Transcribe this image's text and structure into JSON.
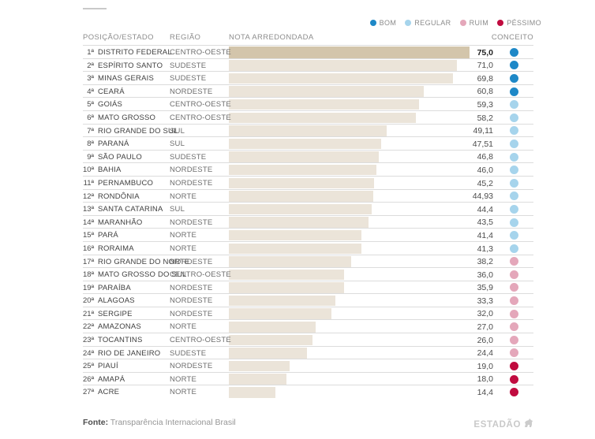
{
  "legend": {
    "items": [
      {
        "label": "BOM",
        "key": "bom",
        "color": "#1e88c7"
      },
      {
        "label": "REGULAR",
        "key": "regular",
        "color": "#a6d4ec"
      },
      {
        "label": "RUIM",
        "key": "ruim",
        "color": "#e4a7ba"
      },
      {
        "label": "PÉSSIMO",
        "key": "pessimo",
        "color": "#c00b3f"
      }
    ]
  },
  "colors": {
    "bar": "#ebe4d9",
    "bar_first": "#d3c5ab",
    "bom": "#1e88c7",
    "regular": "#a6d4ec",
    "ruim": "#e4a7ba",
    "pessimo": "#c00b3f"
  },
  "columns": {
    "position": "POSIÇÃO/ESTADO",
    "region": "REGIÃO",
    "score": "NOTA ARREDONDADA",
    "concept": "CONCEITO"
  },
  "table": {
    "rows": [
      {
        "rank": "1ª",
        "state": "DISTRITO FEDERAL",
        "region": "CENTRO-OESTE",
        "score": "75,0",
        "score_value": 75.0,
        "concept": "bom",
        "bold": true
      },
      {
        "rank": "2ª",
        "state": "ESPÍRITO SANTO",
        "region": "SUDESTE",
        "score": "71,0",
        "score_value": 71.0,
        "concept": "bom",
        "bold": false
      },
      {
        "rank": "3ª",
        "state": "MINAS GERAIS",
        "region": "SUDESTE",
        "score": "69,8",
        "score_value": 69.8,
        "concept": "bom",
        "bold": false
      },
      {
        "rank": "4ª",
        "state": "CEARÁ",
        "region": "NORDESTE",
        "score": "60,8",
        "score_value": 60.8,
        "concept": "bom",
        "bold": false
      },
      {
        "rank": "5ª",
        "state": "GOIÁS",
        "region": "CENTRO-OESTE",
        "score": "59,3",
        "score_value": 59.3,
        "concept": "regular",
        "bold": false
      },
      {
        "rank": "6ª",
        "state": "MATO GROSSO",
        "region": "CENTRO-OESTE",
        "score": "58,2",
        "score_value": 58.2,
        "concept": "regular",
        "bold": false
      },
      {
        "rank": "7ª",
        "state": "RIO GRANDE DO SUL",
        "region": "SUL",
        "score": "49,11",
        "score_value": 49.11,
        "concept": "regular",
        "bold": false
      },
      {
        "rank": "8ª",
        "state": "PARANÁ",
        "region": "SUL",
        "score": "47,51",
        "score_value": 47.51,
        "concept": "regular",
        "bold": false
      },
      {
        "rank": "9ª",
        "state": "SÃO PAULO",
        "region": "SUDESTE",
        "score": "46,8",
        "score_value": 46.8,
        "concept": "regular",
        "bold": false
      },
      {
        "rank": "10ª",
        "state": "BAHIA",
        "region": "NORDESTE",
        "score": "46,0",
        "score_value": 46.0,
        "concept": "regular",
        "bold": false
      },
      {
        "rank": "11ª",
        "state": "PERNAMBUCO",
        "region": "NORDESTE",
        "score": "45,2",
        "score_value": 45.2,
        "concept": "regular",
        "bold": false
      },
      {
        "rank": "12ª",
        "state": "RONDÔNIA",
        "region": "NORTE",
        "score": "44,93",
        "score_value": 44.93,
        "concept": "regular",
        "bold": false
      },
      {
        "rank": "13ª",
        "state": "SANTA CATARINA",
        "region": "SUL",
        "score": "44,4",
        "score_value": 44.4,
        "concept": "regular",
        "bold": false
      },
      {
        "rank": "14ª",
        "state": "MARANHÃO",
        "region": "NORDESTE",
        "score": "43,5",
        "score_value": 43.5,
        "concept": "regular",
        "bold": false
      },
      {
        "rank": "15ª",
        "state": "PARÁ",
        "region": "NORTE",
        "score": "41,4",
        "score_value": 41.4,
        "concept": "regular",
        "bold": false
      },
      {
        "rank": "16ª",
        "state": "RORAIMA",
        "region": "NORTE",
        "score": "41,3",
        "score_value": 41.3,
        "concept": "regular",
        "bold": false
      },
      {
        "rank": "17ª",
        "state": "RIO GRANDE DO NORTE",
        "region": "NORDESTE",
        "score": "38,2",
        "score_value": 38.2,
        "concept": "ruim",
        "bold": false
      },
      {
        "rank": "18ª",
        "state": "MATO GROSSO DO SUL",
        "region": "CENTRO-OESTE",
        "score": "36,0",
        "score_value": 36.0,
        "concept": "ruim",
        "bold": false
      },
      {
        "rank": "19ª",
        "state": "PARAÍBA",
        "region": "NORDESTE",
        "score": "35,9",
        "score_value": 35.9,
        "concept": "ruim",
        "bold": false
      },
      {
        "rank": "20ª",
        "state": "ALAGOAS",
        "region": "NORDESTE",
        "score": "33,3",
        "score_value": 33.3,
        "concept": "ruim",
        "bold": false
      },
      {
        "rank": "21ª",
        "state": "SERGIPE",
        "region": "NORDESTE",
        "score": "32,0",
        "score_value": 32.0,
        "concept": "ruim",
        "bold": false
      },
      {
        "rank": "22ª",
        "state": "AMAZONAS",
        "region": "NORTE",
        "score": "27,0",
        "score_value": 27.0,
        "concept": "ruim",
        "bold": false
      },
      {
        "rank": "23ª",
        "state": "TOCANTINS",
        "region": "CENTRO-OESTE",
        "score": "26,0",
        "score_value": 26.0,
        "concept": "ruim",
        "bold": false
      },
      {
        "rank": "24ª",
        "state": "RIO DE JANEIRO",
        "region": "SUDESTE",
        "score": "24,4",
        "score_value": 24.4,
        "concept": "ruim",
        "bold": false
      },
      {
        "rank": "25ª",
        "state": "PIAUÍ",
        "region": "NORDESTE",
        "score": "19,0",
        "score_value": 19.0,
        "concept": "pessimo",
        "bold": false
      },
      {
        "rank": "26ª",
        "state": "AMAPÁ",
        "region": "NORTE",
        "score": "18,0",
        "score_value": 18.0,
        "concept": "pessimo",
        "bold": false
      },
      {
        "rank": "27ª",
        "state": "ACRE",
        "region": "NORTE",
        "score": "14,4",
        "score_value": 14.4,
        "concept": "pessimo",
        "bold": false
      }
    ]
  },
  "footer": {
    "source_label": "Fonte:",
    "source_text": " Transparência Internacional Brasil",
    "brand": "ESTADÃO"
  },
  "chart_data": {
    "type": "bar",
    "orientation": "horizontal",
    "title": "",
    "categories": [
      "DISTRITO FEDERAL",
      "ESPÍRITO SANTO",
      "MINAS GERAIS",
      "CEARÁ",
      "GOIÁS",
      "MATO GROSSO",
      "RIO GRANDE DO SUL",
      "PARANÁ",
      "SÃO PAULO",
      "BAHIA",
      "PERNAMBUCO",
      "RONDÔNIA",
      "SANTA CATARINA",
      "MARANHÃO",
      "PARÁ",
      "RORAIMA",
      "RIO GRANDE DO NORTE",
      "MATO GROSSO DO SUL",
      "PARAÍBA",
      "ALAGOAS",
      "SERGIPE",
      "AMAZONAS",
      "TOCANTINS",
      "RIO DE JANEIRO",
      "PIAUÍ",
      "AMAPÁ",
      "ACRE"
    ],
    "values": [
      75.0,
      71.0,
      69.8,
      60.8,
      59.3,
      58.2,
      49.11,
      47.51,
      46.8,
      46.0,
      45.2,
      44.93,
      44.4,
      43.5,
      41.4,
      41.3,
      38.2,
      36.0,
      35.9,
      33.3,
      32.0,
      27.0,
      26.0,
      24.4,
      19.0,
      18.0,
      14.4
    ],
    "concepts": [
      "bom",
      "bom",
      "bom",
      "bom",
      "regular",
      "regular",
      "regular",
      "regular",
      "regular",
      "regular",
      "regular",
      "regular",
      "regular",
      "regular",
      "regular",
      "regular",
      "ruim",
      "ruim",
      "ruim",
      "ruim",
      "ruim",
      "ruim",
      "ruim",
      "ruim",
      "pessimo",
      "pessimo",
      "pessimo"
    ],
    "xlabel": "NOTA ARREDONDADA",
    "ylabel": "POSIÇÃO/ESTADO",
    "xlim": [
      0,
      75
    ],
    "grid": false,
    "legend_position": "top-right",
    "legend_entries": [
      "BOM",
      "REGULAR",
      "RUIM",
      "PÉSSIMO"
    ]
  }
}
